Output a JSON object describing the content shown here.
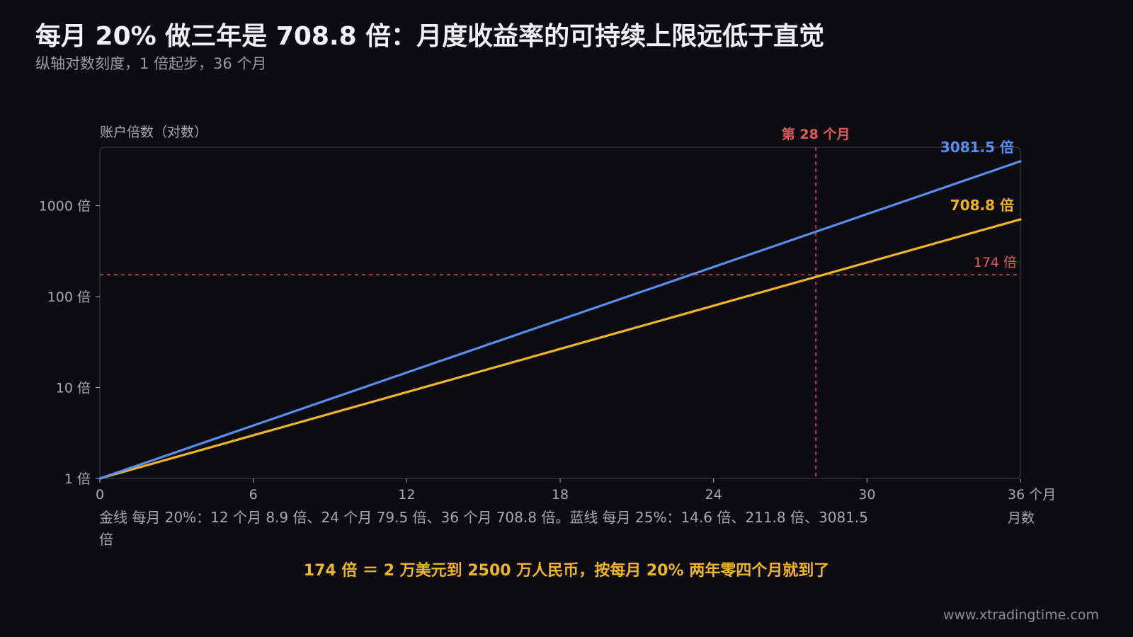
{
  "title": "每月 20% 做三年是 708.8 倍：月度收益率的可持续上限远低于直觉",
  "subtitle": "纵轴对数刻度，1 倍起步，36 个月",
  "caption": "金线 每月 20%：12 个月 8.9 倍、24 个月 79.5 倍、36 个月 708.8 倍。蓝线 每月 25%：14.6 倍、211.8 倍、3081.5 倍",
  "highlight": "174 倍 ＝ 2 万美元到 2500 万人民币，按每月 20% 两年零四个月就到了",
  "watermark": "www.xtradingtime.com",
  "chart_data": {
    "type": "line",
    "ylabel": "账户倍数（对数）",
    "xlabel": "月数",
    "x_scale": "linear",
    "y_scale": "log",
    "xlim": [
      0,
      36
    ],
    "ylim": [
      1,
      4400
    ],
    "x_ticks": [
      0,
      6,
      12,
      18,
      24,
      30,
      36
    ],
    "x_tick_labels": [
      "0",
      "6",
      "12",
      "18",
      "24",
      "30",
      "36 个月"
    ],
    "y_ticks": [
      1,
      10,
      100,
      1000
    ],
    "y_tick_labels": [
      "1 倍",
      "10 倍",
      "100 倍",
      "1000 倍"
    ],
    "grid": false,
    "series": [
      {
        "key": "gold",
        "rate": 0.2,
        "color": "#f0b429",
        "x": [
          0,
          12,
          24,
          36
        ],
        "y": [
          1,
          8.9,
          79.5,
          708.8
        ],
        "end_label": "708.8 倍"
      },
      {
        "key": "blue",
        "rate": 0.25,
        "color": "#5b8def",
        "x": [
          0,
          12,
          24,
          36
        ],
        "y": [
          1,
          14.6,
          211.8,
          3081.5
        ],
        "end_label": "3081.5 倍"
      }
    ],
    "reference_lines": {
      "color": "#e05a5a",
      "horizontal": {
        "y": 174,
        "label": "174 倍"
      },
      "vertical": {
        "x": 28,
        "label": "第 28 个月"
      }
    },
    "colors": {
      "background": "#0c0c10",
      "frame": "#3a3a42",
      "axis_text": "#a8a8b0",
      "title": "#f2f2f4"
    }
  }
}
